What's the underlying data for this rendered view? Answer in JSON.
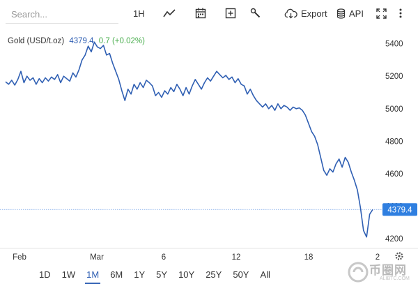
{
  "toolbar": {
    "search_placeholder": "Search...",
    "interval_label": "1H",
    "export_label": "Export",
    "api_label": "API"
  },
  "legend": {
    "instrument": "Gold (USD/t.oz)",
    "last_value": "4379.4",
    "change": "0.7 (+0.02%)"
  },
  "ranges": [
    "1D",
    "1W",
    "1M",
    "6M",
    "1Y",
    "5Y",
    "10Y",
    "25Y",
    "50Y",
    "All"
  ],
  "active_range": "1M",
  "colors": {
    "line": "#2f5fb3",
    "change_positive": "#4caf50",
    "badge": "#2f7fe0"
  },
  "watermark": {
    "text": "币圈网",
    "sub": "ALIBTC.COM"
  },
  "chart_data": {
    "type": "line",
    "title": "Gold (USD/t.oz)",
    "xlabel": "",
    "ylabel": "",
    "y_ticks": [
      4200,
      4400,
      4600,
      4800,
      5000,
      5200,
      5400
    ],
    "ylim": [
      4140,
      5480
    ],
    "x_tick_labels": [
      "Feb",
      "Mar",
      "6",
      "12",
      "18",
      "2"
    ],
    "last_price_label": "4379.4",
    "grid": false,
    "series": [
      {
        "name": "Gold",
        "x": [
          0,
          1,
          2,
          3,
          4,
          5,
          6,
          7,
          8,
          9,
          10,
          11,
          12,
          13,
          14,
          15,
          16,
          17,
          18,
          19,
          20,
          21,
          22,
          23,
          24,
          25,
          26,
          27,
          28,
          29,
          30,
          31,
          32,
          33,
          34,
          35,
          36,
          37,
          38,
          39,
          40,
          41,
          42,
          43,
          44,
          45,
          46,
          47,
          48,
          49,
          50,
          51,
          52,
          53,
          54,
          55,
          56,
          57,
          58,
          59,
          60,
          61,
          62,
          63,
          64,
          65,
          66,
          67,
          68,
          69,
          70,
          71,
          72,
          73,
          74,
          75,
          76,
          77,
          78,
          79,
          80,
          81,
          82,
          83,
          84,
          85,
          86,
          87,
          88,
          89,
          90,
          91,
          92,
          93,
          94,
          95,
          96,
          97,
          98,
          99,
          100,
          101,
          102,
          103,
          104,
          105,
          106,
          107,
          108,
          109,
          110,
          111,
          112,
          113,
          114,
          115,
          116,
          117,
          118,
          119,
          120
        ],
        "values": [
          5165,
          5150,
          5175,
          5145,
          5180,
          5230,
          5160,
          5200,
          5175,
          5190,
          5150,
          5185,
          5160,
          5190,
          5170,
          5195,
          5180,
          5210,
          5160,
          5200,
          5185,
          5170,
          5220,
          5195,
          5240,
          5300,
          5330,
          5385,
          5350,
          5410,
          5380,
          5370,
          5390,
          5330,
          5340,
          5280,
          5230,
          5180,
          5110,
          5050,
          5120,
          5090,
          5150,
          5120,
          5160,
          5130,
          5175,
          5160,
          5140,
          5080,
          5100,
          5070,
          5110,
          5090,
          5130,
          5105,
          5150,
          5120,
          5080,
          5130,
          5090,
          5140,
          5180,
          5150,
          5120,
          5160,
          5190,
          5170,
          5200,
          5230,
          5210,
          5190,
          5205,
          5180,
          5195,
          5160,
          5185,
          5150,
          5140,
          5090,
          5120,
          5080,
          5050,
          5030,
          5010,
          5030,
          5000,
          5020,
          4990,
          5030,
          5000,
          5020,
          5010,
          4990,
          5010,
          5000,
          5005,
          4990,
          4960,
          4910,
          4860,
          4830,
          4780,
          4700,
          4620,
          4590,
          4630,
          4610,
          4660,
          4690,
          4640,
          4700,
          4670,
          4610,
          4560,
          4500,
          4390,
          4250,
          4210,
          4350,
          4379.4
        ]
      }
    ]
  }
}
